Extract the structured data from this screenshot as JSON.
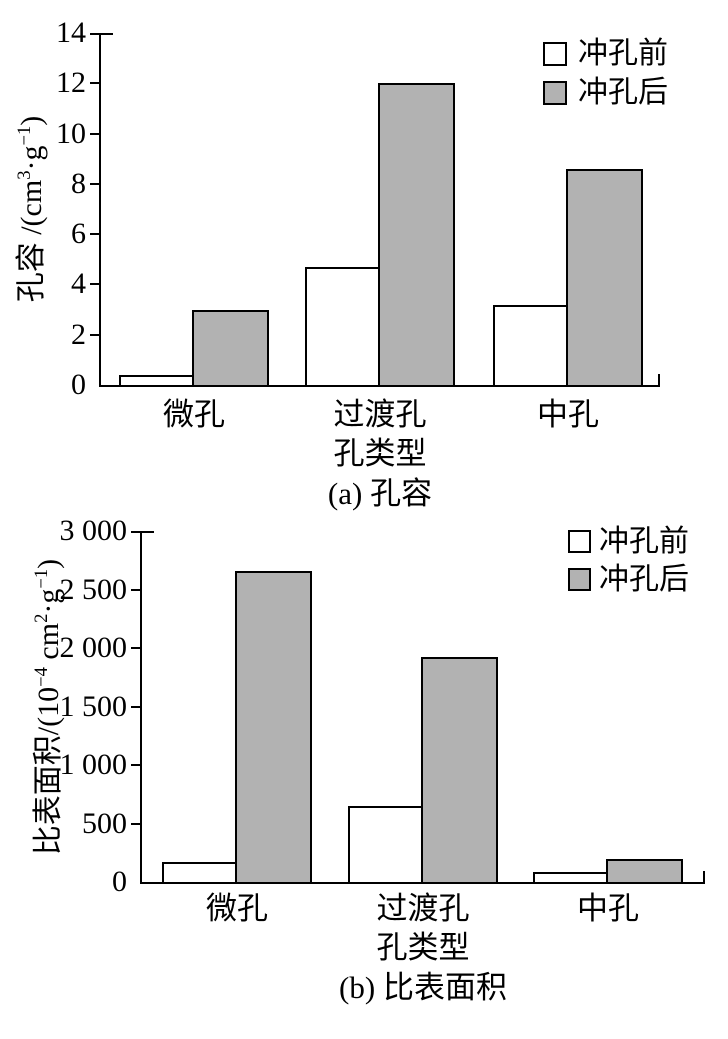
{
  "figure": {
    "background": "#ffffff",
    "axis_color": "#000000"
  },
  "colors": {
    "bar_before_fill": "#ffffff",
    "bar_after_fill": "#b2b2b2",
    "bar_border": "#000000"
  },
  "chart_data": [
    {
      "type": "bar",
      "panel": "a",
      "caption": "(a) 孔容",
      "xlabel": "孔类型",
      "ylabel": "孔容 /(cm³·g⁻¹)",
      "ylabel_segments": [
        {
          "text": "孔容 /(cm"
        },
        {
          "text": "3",
          "sup": true
        },
        {
          "text": "·g"
        },
        {
          "text": "−1",
          "sup": true
        },
        {
          "text": ")"
        }
      ],
      "categories": [
        "微孔",
        "过渡孔",
        "中孔"
      ],
      "series": [
        {
          "name": "冲孔前",
          "fill": "#ffffff",
          "values": [
            0.4,
            4.7,
            3.2
          ]
        },
        {
          "name": "冲孔后",
          "fill": "#b2b2b2",
          "values": [
            3.0,
            12.0,
            8.6
          ]
        }
      ],
      "ylim": [
        0,
        14
      ],
      "ytick_step": 2,
      "yticks": [
        "0",
        "2",
        "4",
        "6",
        "8",
        "10",
        "12",
        "14"
      ],
      "legend_position": "top-right",
      "grid": false
    },
    {
      "type": "bar",
      "panel": "b",
      "caption": "(b) 比表面积",
      "xlabel": "孔类型",
      "ylabel": "比表面积/(10⁻⁴ cm²·g⁻¹)",
      "ylabel_segments": [
        {
          "text": "比表面积/(10"
        },
        {
          "text": "−4",
          "sup": true
        },
        {
          "text": " cm"
        },
        {
          "text": "2",
          "sup": true
        },
        {
          "text": "·g"
        },
        {
          "text": "−1",
          "sup": true
        },
        {
          "text": ")"
        }
      ],
      "categories": [
        "微孔",
        "过渡孔",
        "中孔"
      ],
      "series": [
        {
          "name": "冲孔前",
          "fill": "#ffffff",
          "values": [
            170,
            650,
            85
          ]
        },
        {
          "name": "冲孔后",
          "fill": "#b2b2b2",
          "values": [
            2660,
            1920,
            200
          ]
        }
      ],
      "ylim": [
        0,
        3000
      ],
      "ytick_step": 500,
      "yticks": [
        "0",
        "500",
        "1 000",
        "1 500",
        "2 000",
        "2 500",
        "3 000"
      ],
      "legend_position": "top-right",
      "grid": false
    }
  ]
}
